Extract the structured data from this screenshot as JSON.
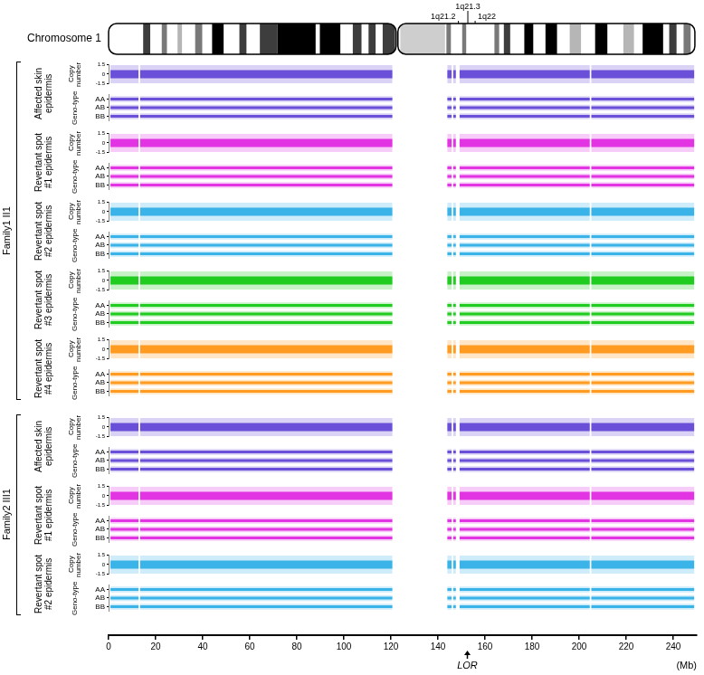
{
  "chart_data": {
    "type": "scatter",
    "title": "Chromosome 1",
    "xlim": [
      0,
      250
    ],
    "xticks": [
      0,
      20,
      40,
      60,
      80,
      100,
      120,
      140,
      160,
      180,
      200,
      220,
      240
    ],
    "x_label": "(Mb)",
    "annotations": [
      {
        "text": "LOR",
        "x": 152.5
      }
    ],
    "ideogram": {
      "centromere": 122.6,
      "length": 249.2,
      "bands": [
        {
          "start": 14.7,
          "end": 17.7,
          "gpos": 75
        },
        {
          "start": 22.6,
          "end": 24.8,
          "gpos": 50
        },
        {
          "start": 29.3,
          "end": 31.2,
          "gpos": 25
        },
        {
          "start": 36.8,
          "end": 39.8,
          "gpos": 50
        },
        {
          "start": 44.0,
          "end": 48.9,
          "gpos": 100
        },
        {
          "start": 55.6,
          "end": 58.6,
          "gpos": 75
        },
        {
          "start": 64.3,
          "end": 71.8,
          "gpos": 75
        },
        {
          "start": 71.8,
          "end": 88.0,
          "gpos": 100
        },
        {
          "start": 89.8,
          "end": 98.5,
          "gpos": 100
        },
        {
          "start": 103.8,
          "end": 107.5,
          "gpos": 75
        },
        {
          "start": 110.5,
          "end": 113.5,
          "gpos": 75
        },
        {
          "start": 116.5,
          "end": 121.8,
          "gpos": 75
        },
        {
          "start": 124.0,
          "end": 143.0,
          "gpos": 15
        },
        {
          "start": 143.6,
          "end": 145.5,
          "gpos": 50
        },
        {
          "start": 150.3,
          "end": 152.0,
          "gpos": 50
        },
        {
          "start": 164.0,
          "end": 166.0,
          "gpos": 50
        },
        {
          "start": 168.0,
          "end": 170.7,
          "gpos": 75
        },
        {
          "start": 176.7,
          "end": 180.5,
          "gpos": 100
        },
        {
          "start": 185.7,
          "end": 190.6,
          "gpos": 100
        },
        {
          "start": 196.0,
          "end": 200.8,
          "gpos": 25
        },
        {
          "start": 206.8,
          "end": 212.0,
          "gpos": 100
        },
        {
          "start": 218.8,
          "end": 223.3,
          "gpos": 25
        },
        {
          "start": 227.0,
          "end": 235.7,
          "gpos": 100
        },
        {
          "start": 238.3,
          "end": 241.4,
          "gpos": 75
        },
        {
          "start": 244.4,
          "end": 247.4,
          "gpos": 50
        }
      ],
      "labels": [
        {
          "text": "1q21.2",
          "x": 148.7
        },
        {
          "text": "1q21.3",
          "x": 152.7
        },
        {
          "text": "1q22",
          "x": 155.8
        }
      ]
    },
    "probe_segments": [
      [
        0.8,
        12.7
      ],
      [
        13.4,
        120.6
      ],
      [
        144.0,
        145.8
      ],
      [
        146.5,
        147.6
      ],
      [
        149.2,
        204.5
      ],
      [
        205.2,
        248.9
      ]
    ],
    "tracks": {
      "copy_number": {
        "label": "Copy number",
        "ylim": [
          -1.5,
          1.5
        ],
        "yticks": [
          -1.5,
          0,
          1.5
        ],
        "value": 0
      },
      "genotype": {
        "label": "Geno-type",
        "ylim": [
          -0.25,
          1.25
        ],
        "yticks": [
          {
            "value": 1,
            "label": "AA"
          },
          {
            "value": 0.5,
            "label": "AB"
          },
          {
            "value": 0,
            "label": "BB"
          }
        ]
      }
    },
    "groups": [
      {
        "name": "Family1 II1",
        "samples": [
          {
            "name": "Affected skin epidermis",
            "color": "#6a4fd8"
          },
          {
            "name": "Revertant spot #1 epidermis",
            "color": "#e334e3"
          },
          {
            "name": "Revertant spot #2 epidermis",
            "color": "#3ab4e8"
          },
          {
            "name": "Revertant spot #3 epidermis",
            "color": "#1fcc1f"
          },
          {
            "name": "Revertant spot #4 epidermis",
            "color": "#ff9b21"
          }
        ]
      },
      {
        "name": "Family2 III1",
        "samples": [
          {
            "name": "Affected skin epidermis",
            "color": "#6a4fd8"
          },
          {
            "name": "Revertant spot #1 epidermis",
            "color": "#e334e3"
          },
          {
            "name": "Revertant spot #2 epidermis",
            "color": "#3ab4e8"
          }
        ]
      }
    ]
  }
}
